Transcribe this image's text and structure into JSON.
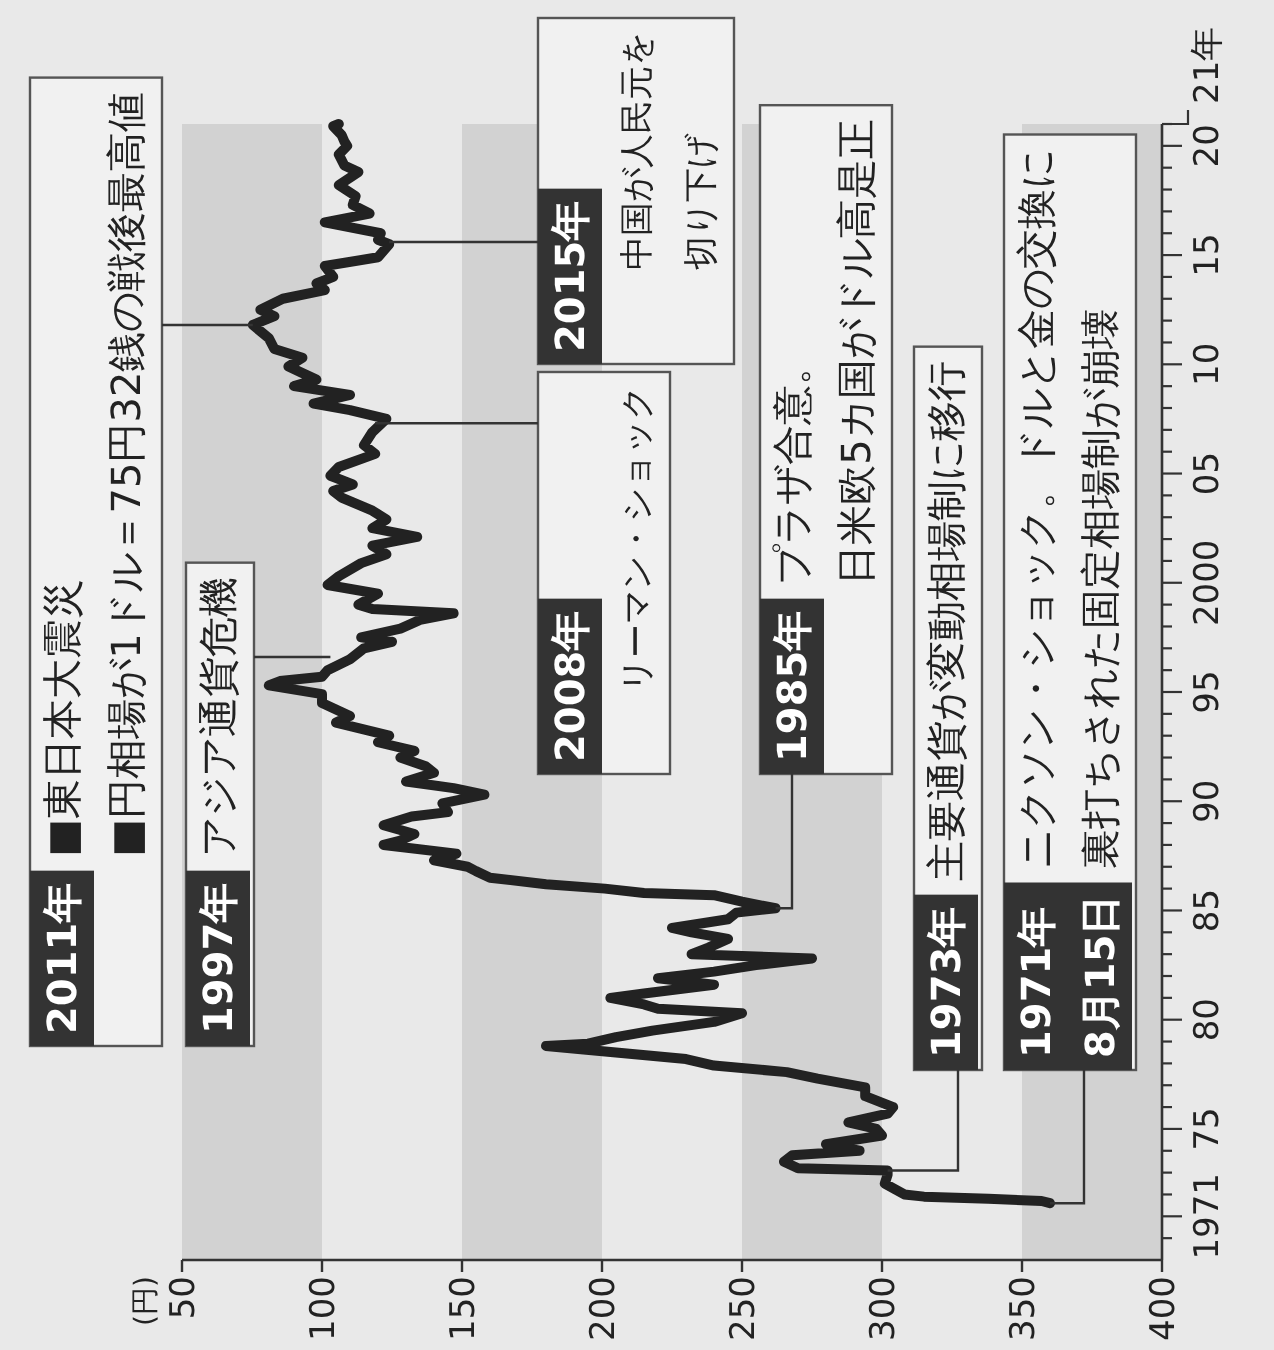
{
  "chart_data": {
    "type": "line",
    "color": "#222222",
    "line_style": "solid",
    "marker": "none",
    "x": [
      360,
      357,
      338,
      315,
      308,
      301,
      302,
      302,
      270,
      265,
      268,
      292,
      280,
      300,
      298,
      288,
      302,
      304,
      294,
      294,
      277,
      266,
      240,
      230,
      205,
      180,
      195,
      205,
      218,
      240,
      250,
      220,
      215,
      203,
      215,
      240,
      220,
      240,
      255,
      275,
      232,
      238,
      245,
      232,
      225,
      245,
      248,
      262,
      250,
      240,
      215,
      201,
      180,
      160,
      155,
      152,
      140,
      148,
      122,
      128,
      133,
      122,
      132,
      145,
      143,
      158,
      147,
      130,
      140,
      137,
      128,
      133,
      120,
      124,
      105,
      110,
      100,
      100,
      81,
      85,
      100,
      102,
      110,
      115,
      125,
      114,
      128,
      135,
      147,
      118,
      113,
      120,
      102,
      106,
      114,
      123,
      118,
      134,
      118,
      123,
      118,
      107,
      104,
      111,
      103,
      106,
      119,
      115,
      118,
      123,
      110,
      97,
      110,
      90,
      98,
      88,
      93,
      83,
      81,
      75.3,
      83,
      78,
      86,
      101,
      98,
      104,
      101,
      120,
      124,
      120,
      121,
      101,
      117,
      111,
      112,
      106,
      113,
      108,
      106,
      109,
      108,
      107,
      104,
      106
    ],
    "values": [
      1971.6,
      1971.7,
      1971.8,
      1971.9,
      1972.0,
      1972.5,
      1972.9,
      1973.1,
      1973.2,
      1973.5,
      1973.8,
      1974.0,
      1974.3,
      1974.7,
      1975.0,
      1975.3,
      1975.7,
      1976.0,
      1976.5,
      1976.9,
      1977.3,
      1977.6,
      1977.9,
      1978.2,
      1978.5,
      1978.8,
      1978.9,
      1979.2,
      1979.5,
      1979.9,
      1980.3,
      1980.5,
      1980.7,
      1981.0,
      1981.2,
      1981.6,
      1981.9,
      1982.2,
      1982.5,
      1982.8,
      1983.0,
      1983.3,
      1983.7,
      1984.0,
      1984.2,
      1984.6,
      1984.9,
      1985.1,
      1985.4,
      1985.7,
      1985.8,
      1986.0,
      1986.2,
      1986.5,
      1986.8,
      1987.0,
      1987.3,
      1987.6,
      1988.0,
      1988.2,
      1988.5,
      1988.9,
      1989.3,
      1989.5,
      1989.9,
      1990.3,
      1990.6,
      1990.9,
      1991.3,
      1991.6,
      1992.0,
      1992.3,
      1992.7,
      1993.0,
      1993.6,
      1993.9,
      1994.5,
      1994.9,
      1995.3,
      1995.5,
      1995.7,
      1996.0,
      1996.5,
      1997.0,
      1997.3,
      1997.5,
      1997.9,
      1998.3,
      1998.6,
      1998.8,
      1999.0,
      1999.5,
      1999.9,
      2000.3,
      2000.9,
      2001.3,
      2001.7,
      2002.1,
      2002.5,
      2002.9,
      2003.3,
      2003.9,
      2004.2,
      2004.5,
      2004.9,
      2005.3,
      2005.9,
      2006.3,
      2006.9,
      2007.5,
      2007.9,
      2008.2,
      2008.6,
      2009.0,
      2009.3,
      2009.9,
      2010.3,
      2010.7,
      2011.2,
      2011.8,
      2012.2,
      2012.5,
      2013.0,
      2013.4,
      2013.7,
      2014.0,
      2014.5,
      2014.9,
      2015.5,
      2015.7,
      2016.0,
      2016.5,
      2016.9,
      2017.3,
      2017.7,
      2018.2,
      2018.8,
      2019.1,
      2019.6,
      2020.0,
      2020.2,
      2020.5,
      2020.9,
      2021.0
    ],
    "xlim": [
      50,
      400
    ],
    "ylim": [
      1969,
      2021
    ],
    "xticks": [
      50,
      100,
      150,
      200,
      250,
      300,
      350,
      400
    ],
    "yticks": [
      {
        "value": 1970,
        "label": null
      },
      {
        "value": 1971,
        "label": "1971"
      },
      {
        "value": 1972,
        "label": null
      },
      {
        "value": 1973,
        "label": null
      },
      {
        "value": 1974,
        "label": null
      },
      {
        "value": 1975,
        "label": "75"
      },
      {
        "value": 1976,
        "label": null
      },
      {
        "value": 1977,
        "label": null
      },
      {
        "value": 1978,
        "label": null
      },
      {
        "value": 1979,
        "label": null
      },
      {
        "value": 1980,
        "label": "80"
      },
      {
        "value": 1981,
        "label": null
      },
      {
        "value": 1982,
        "label": null
      },
      {
        "value": 1983,
        "label": null
      },
      {
        "value": 1984,
        "label": null
      },
      {
        "value": 1985,
        "label": "85"
      },
      {
        "value": 1986,
        "label": null
      },
      {
        "value": 1987,
        "label": null
      },
      {
        "value": 1988,
        "label": null
      },
      {
        "value": 1989,
        "label": null
      },
      {
        "value": 1990,
        "label": "90"
      },
      {
        "value": 1991,
        "label": null
      },
      {
        "value": 1992,
        "label": null
      },
      {
        "value": 1993,
        "label": null
      },
      {
        "value": 1994,
        "label": null
      },
      {
        "value": 1995,
        "label": "95"
      },
      {
        "value": 1996,
        "label": null
      },
      {
        "value": 1997,
        "label": null
      },
      {
        "value": 1998,
        "label": null
      },
      {
        "value": 1999,
        "label": null
      },
      {
        "value": 2000,
        "label": "2000"
      },
      {
        "value": 2001,
        "label": null
      },
      {
        "value": 2002,
        "label": null
      },
      {
        "value": 2003,
        "label": null
      },
      {
        "value": 2004,
        "label": null
      },
      {
        "value": 2005,
        "label": "05"
      },
      {
        "value": 2006,
        "label": null
      },
      {
        "value": 2007,
        "label": null
      },
      {
        "value": 2008,
        "label": null
      },
      {
        "value": 2009,
        "label": null
      },
      {
        "value": 2010,
        "label": "10"
      },
      {
        "value": 2011,
        "label": null
      },
      {
        "value": 2012,
        "label": null
      },
      {
        "value": 2013,
        "label": null
      },
      {
        "value": 2014,
        "label": null
      },
      {
        "value": 2015,
        "label": "15"
      },
      {
        "value": 2016,
        "label": null
      },
      {
        "value": 2017,
        "label": null
      },
      {
        "value": 2018,
        "label": null
      },
      {
        "value": 2019,
        "label": null
      },
      {
        "value": 2020,
        "label": "20"
      },
      {
        "value": 2021,
        "label": null
      }
    ],
    "ylabel": "21年",
    "bands": [
      {
        "axis": "x",
        "from": 50,
        "to": 100,
        "color": "#d2d2d2"
      },
      {
        "axis": "x",
        "from": 150,
        "to": 200,
        "color": "#d2d2d2"
      },
      {
        "axis": "x",
        "from": 250,
        "to": 300,
        "color": "#d2d2d2"
      },
      {
        "axis": "x",
        "from": 350,
        "to": 400,
        "color": "#d2d2d2"
      }
    ],
    "annotations": [
      {
        "text": "**2011年**■東日本大震災\n■円相場が1ドル＝75円32銭の戦後最高値",
        "x": 75.3,
        "y": 2011.8
      },
      {
        "text": "**1997年**アジア通貨危機",
        "x": 103,
        "y": 1996.6
      },
      {
        "text": "**2008年**リーマン・ショック",
        "x": 119,
        "y": 2007.3
      },
      {
        "text": "**2015年**中国が人民元を切り下げ",
        "x": 124,
        "y": 2015.6
      },
      {
        "text": "**1985年**プラザ合意。日米欧5カ国がドル高是正",
        "x": 262,
        "y": 1985.1
      },
      {
        "text": "**1973年**主要通貨が変動相場制に移行",
        "x": 302,
        "y": 1973.1
      },
      "(円)",
      {
        "text": "**1971年\n8月15日**ニクソン・ショック。ドルと金の交換に裏打ちされた固定相場制が崩壊",
        "x": 360,
        "y": 1971.6
      }
    ]
  }
}
